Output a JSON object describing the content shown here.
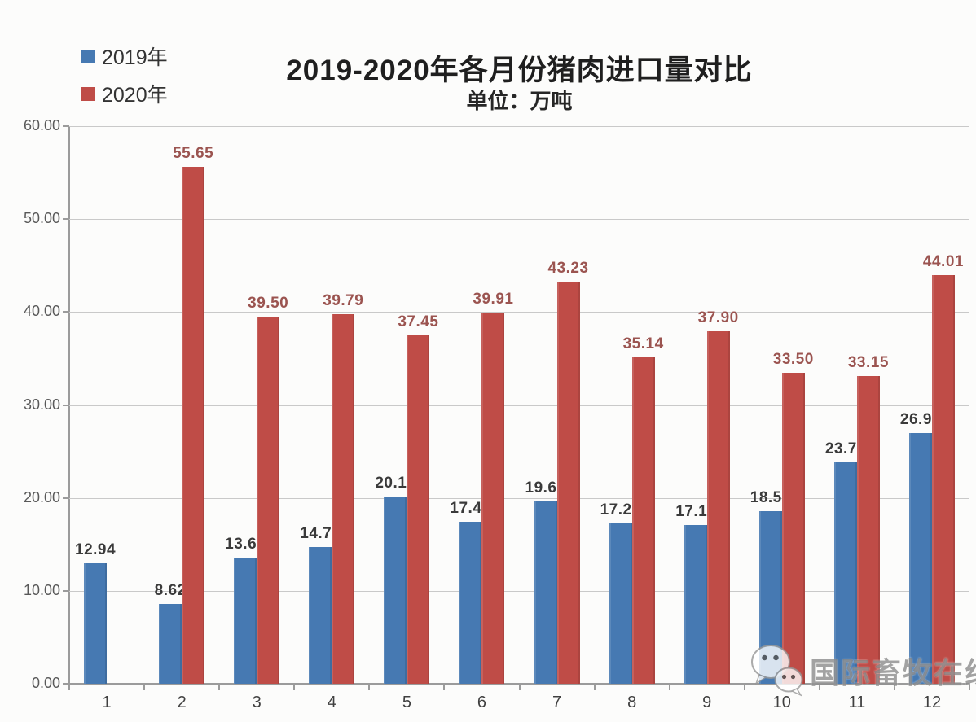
{
  "title": "2019-2020年各月份猪肉进口量对比",
  "subtitle": "单位：万吨",
  "legend": [
    {
      "label": "2019年",
      "color": "#4679b2"
    },
    {
      "label": "2020年",
      "color": "#bf4c47"
    }
  ],
  "watermark": {
    "text": "国际畜牧在线",
    "icon": "wechat-icon"
  },
  "colors": {
    "bar_2019": "#4679b2",
    "bar_2020": "#bf4c47",
    "label_2019": "#3a3a3a",
    "label_2020": "#9b5450",
    "gridline": "#c9c9c9",
    "axis": "#9b9b9b"
  },
  "chart_data": {
    "type": "bar",
    "title": "2019-2020年各月份猪肉进口量对比",
    "subtitle": "单位：万吨",
    "categories": [
      "1",
      "2",
      "3",
      "4",
      "5",
      "6",
      "7",
      "8",
      "9",
      "10",
      "11",
      "12"
    ],
    "series": [
      {
        "name": "2019年",
        "color": "#4679b2",
        "label_color": "#3a3a3a",
        "values": [
          12.94,
          8.62,
          13.6,
          14.74,
          20.12,
          17.47,
          19.63,
          17.26,
          17.11,
          18.56,
          23.79,
          26.98
        ]
      },
      {
        "name": "2020年",
        "color": "#bf4c47",
        "label_color": "#9b5450",
        "values": [
          null,
          55.65,
          39.5,
          39.79,
          37.45,
          39.91,
          43.23,
          35.14,
          37.9,
          33.5,
          33.15,
          44.01
        ]
      }
    ],
    "xlabel": "",
    "ylabel": "",
    "ylim": [
      0,
      60
    ],
    "ytick_step": 10,
    "ytick_labels": [
      "0.00",
      "10.00",
      "20.00",
      "30.00",
      "40.00",
      "50.00",
      "60.00"
    ],
    "grid": true,
    "legend_position": "top-left",
    "data_labels": true,
    "data_label_format": "0.00",
    "note_missing": "2020 January bar not plotted"
  }
}
